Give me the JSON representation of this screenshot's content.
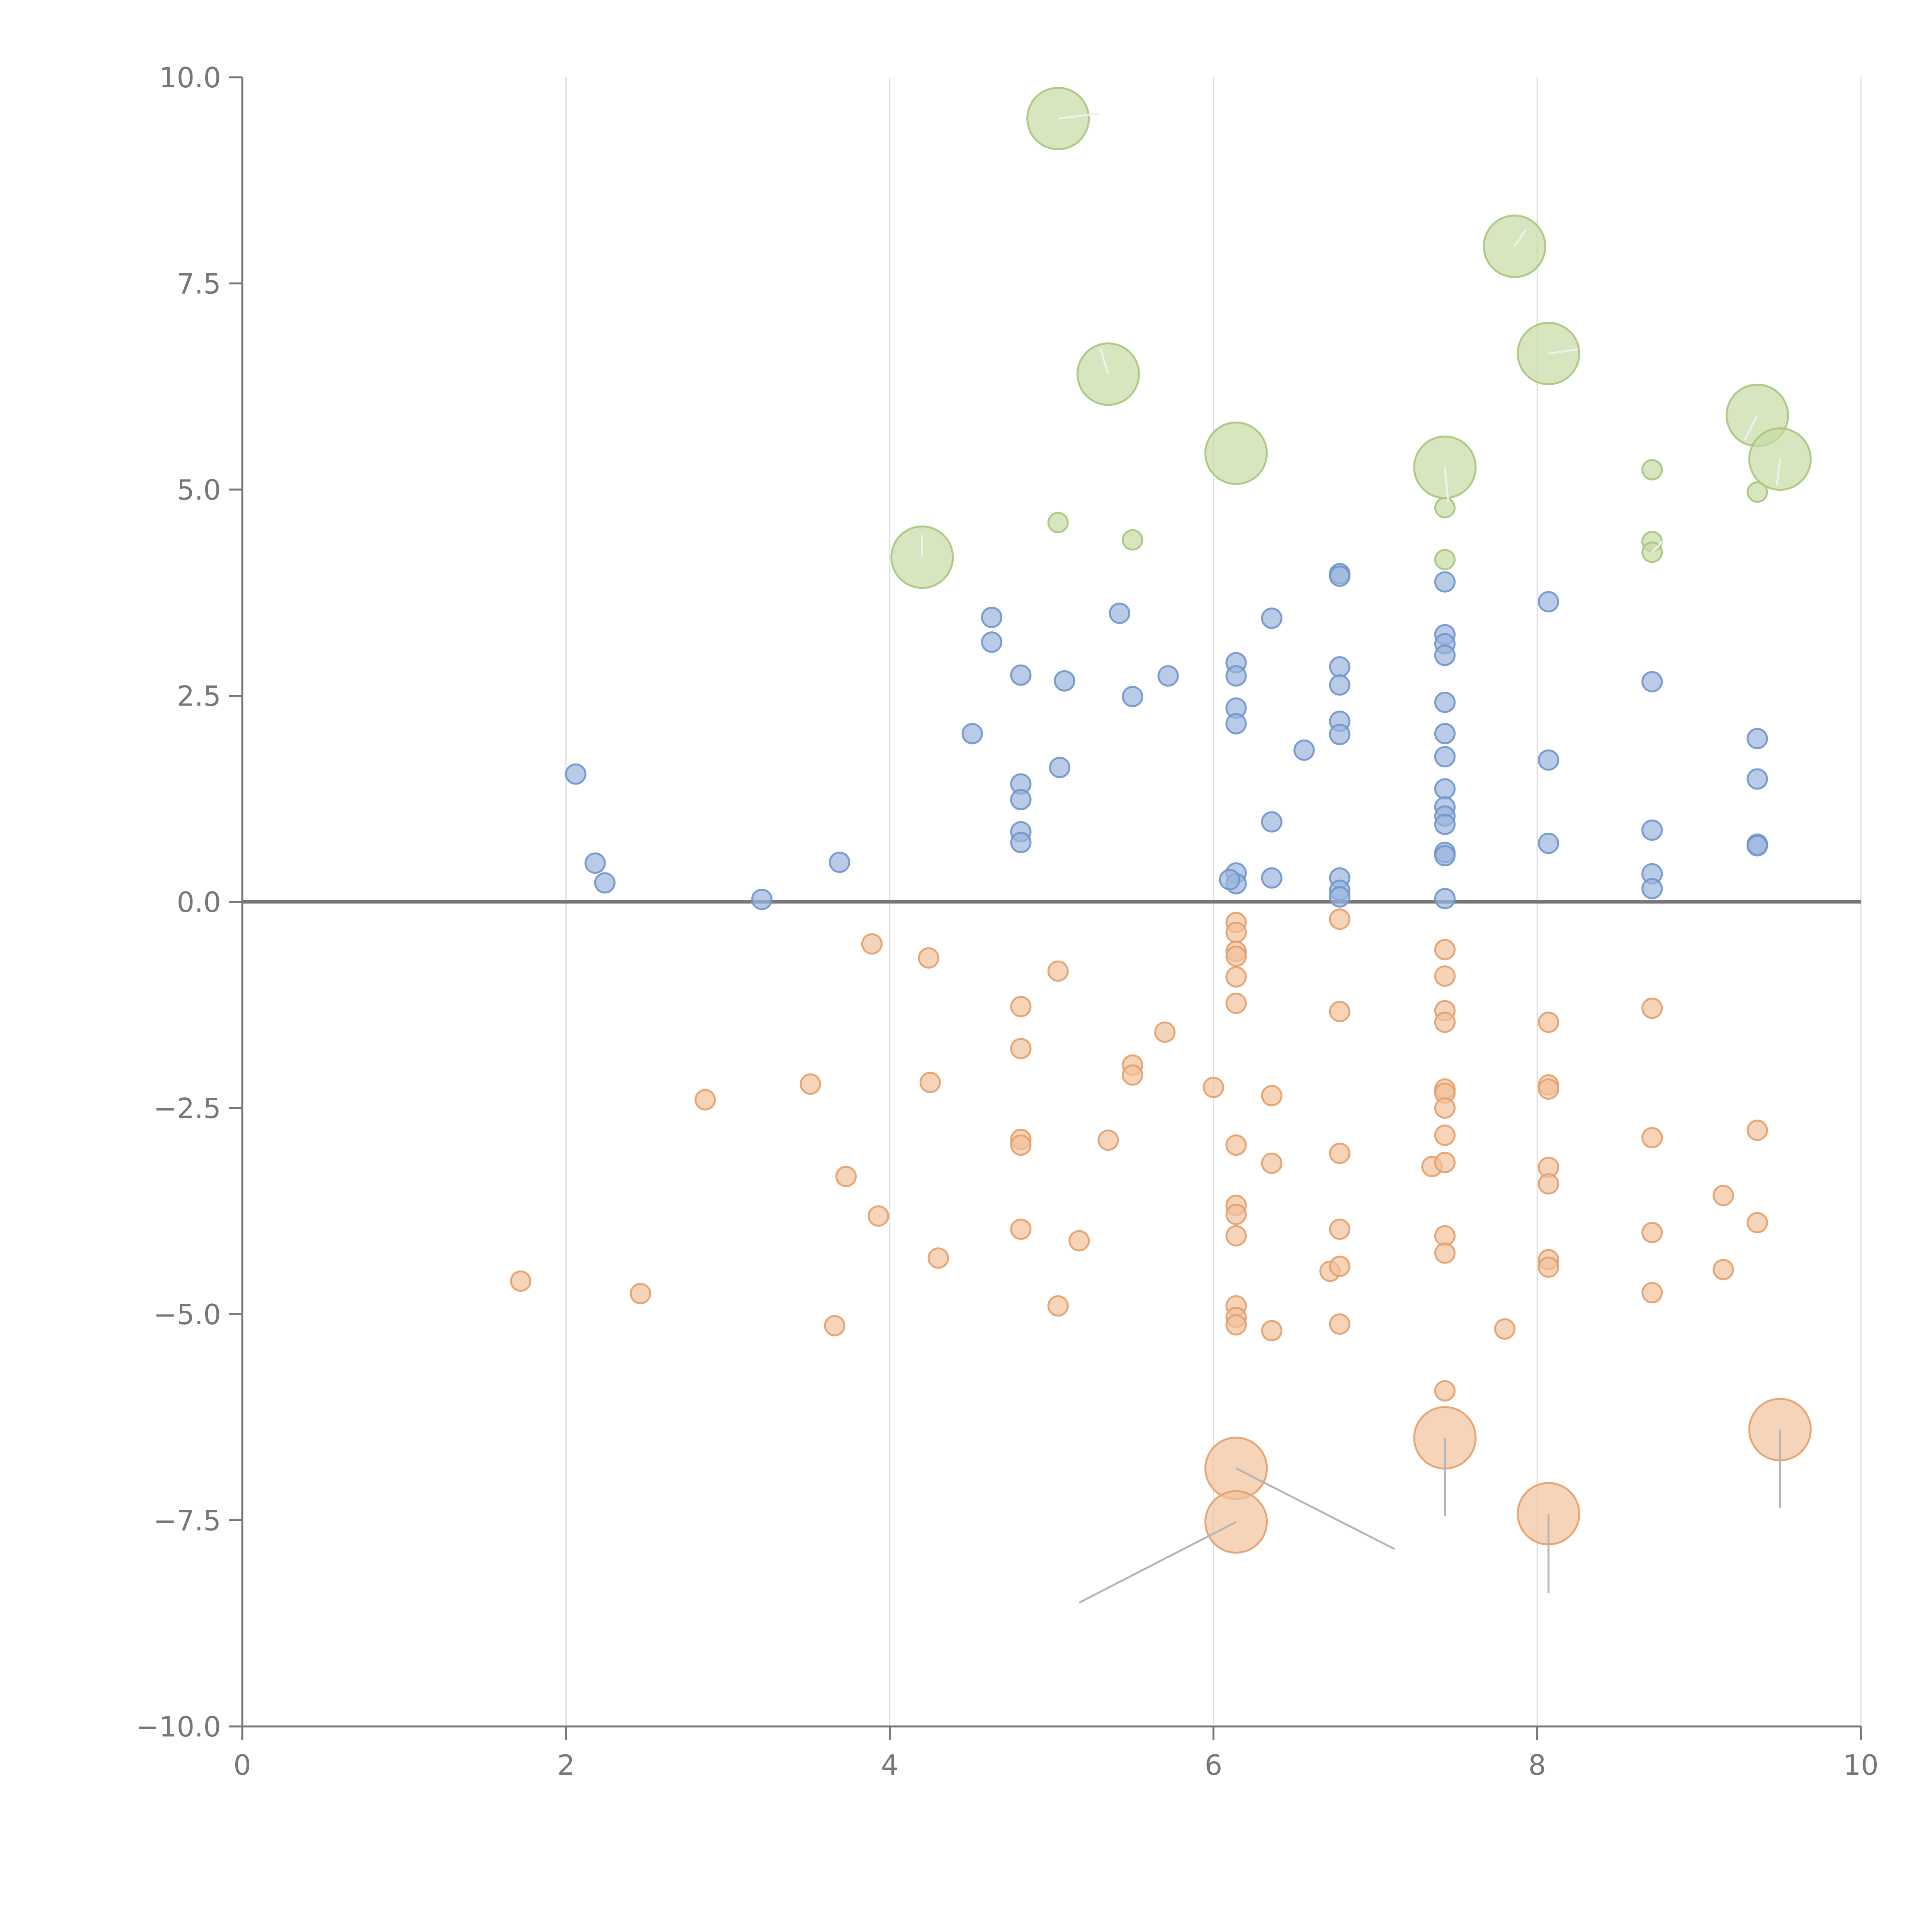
{
  "chart_data": {
    "type": "scatter",
    "title": "",
    "xlabel": "",
    "ylabel": "",
    "xlim": [
      0,
      10
    ],
    "ylim": [
      -10,
      10
    ],
    "x_ticks": [
      "0",
      "2",
      "4",
      "6",
      "8",
      "10"
    ],
    "y_ticks": [
      "10.0",
      "7.5",
      "5.0",
      "2.5",
      "0.0",
      "−2.5",
      "−5.0",
      "−7.5",
      "−10.0"
    ],
    "x_tick_values": [
      0,
      2,
      4,
      6,
      8,
      10
    ],
    "y_tick_values": [
      10,
      7.5,
      5,
      2.5,
      0,
      -2.5,
      -5,
      -7.5,
      -10
    ],
    "grid": "vertical",
    "zero_line": true,
    "colors": {
      "blue_fill": "#9bb5dc",
      "blue_stroke": "#6f95cc",
      "orange_fill": "#f2c29c",
      "orange_stroke": "#e3a06b",
      "green_fill": "#c6dca4",
      "green_stroke": "#a7c77c",
      "leader": "#b5b5b5",
      "leader_light": "#f0f0f0"
    },
    "series": [
      {
        "color_key": "blue",
        "points": [
          {
            "x": 2.06,
            "y": 1.55
          },
          {
            "x": 2.18,
            "y": 0.47
          },
          {
            "x": 2.24,
            "y": 0.23
          },
          {
            "x": 3.21,
            "y": 0.03
          },
          {
            "x": 3.69,
            "y": 0.48
          },
          {
            "x": 4.51,
            "y": 2.04
          },
          {
            "x": 4.63,
            "y": 3.45
          },
          {
            "x": 4.63,
            "y": 3.15
          },
          {
            "x": 4.81,
            "y": 2.75
          },
          {
            "x": 4.81,
            "y": 1.43
          },
          {
            "x": 4.81,
            "y": 1.24
          },
          {
            "x": 4.81,
            "y": 0.85
          },
          {
            "x": 4.81,
            "y": 0.72
          },
          {
            "x": 5.05,
            "y": 1.63
          },
          {
            "x": 5.08,
            "y": 2.68
          },
          {
            "x": 5.42,
            "y": 3.5
          },
          {
            "x": 5.5,
            "y": 2.49
          },
          {
            "x": 5.72,
            "y": 2.74
          },
          {
            "x": 6.14,
            "y": 2.9
          },
          {
            "x": 6.14,
            "y": 2.74
          },
          {
            "x": 6.14,
            "y": 2.35
          },
          {
            "x": 6.14,
            "y": 2.16
          },
          {
            "x": 6.14,
            "y": 0.35
          },
          {
            "x": 6.14,
            "y": 0.22
          },
          {
            "x": 6.1,
            "y": 0.27
          },
          {
            "x": 6.36,
            "y": 3.44
          },
          {
            "x": 6.36,
            "y": 0.97
          },
          {
            "x": 6.36,
            "y": 0.29
          },
          {
            "x": 6.56,
            "y": 1.84
          },
          {
            "x": 6.78,
            "y": 3.98
          },
          {
            "x": 6.78,
            "y": 3.95
          },
          {
            "x": 6.78,
            "y": 2.85
          },
          {
            "x": 6.78,
            "y": 2.63
          },
          {
            "x": 6.78,
            "y": 2.19
          },
          {
            "x": 6.78,
            "y": 2.03
          },
          {
            "x": 6.78,
            "y": 0.29
          },
          {
            "x": 6.78,
            "y": 0.14
          },
          {
            "x": 6.78,
            "y": 0.06
          },
          {
            "x": 7.43,
            "y": 3.88
          },
          {
            "x": 7.43,
            "y": 3.24
          },
          {
            "x": 7.43,
            "y": 3.13
          },
          {
            "x": 7.43,
            "y": 2.99
          },
          {
            "x": 7.43,
            "y": 2.42
          },
          {
            "x": 7.43,
            "y": 2.04
          },
          {
            "x": 7.43,
            "y": 1.76
          },
          {
            "x": 7.43,
            "y": 1.37
          },
          {
            "x": 7.43,
            "y": 1.15
          },
          {
            "x": 7.43,
            "y": 1.04
          },
          {
            "x": 7.43,
            "y": 0.94
          },
          {
            "x": 7.43,
            "y": 0.6
          },
          {
            "x": 7.43,
            "y": 0.56
          },
          {
            "x": 7.43,
            "y": 0.04
          },
          {
            "x": 8.07,
            "y": 3.64
          },
          {
            "x": 8.07,
            "y": 1.72
          },
          {
            "x": 8.07,
            "y": 0.71
          },
          {
            "x": 8.71,
            "y": 2.67
          },
          {
            "x": 8.71,
            "y": 0.87
          },
          {
            "x": 8.71,
            "y": 0.34
          },
          {
            "x": 8.71,
            "y": 0.16
          },
          {
            "x": 9.36,
            "y": 1.98
          },
          {
            "x": 9.36,
            "y": 1.49
          },
          {
            "x": 9.36,
            "y": 0.7
          },
          {
            "x": 9.36,
            "y": 0.68
          }
        ]
      },
      {
        "color_key": "orange",
        "points": [
          {
            "x": 1.72,
            "y": -4.6
          },
          {
            "x": 2.46,
            "y": -4.75
          },
          {
            "x": 2.86,
            "y": -2.4
          },
          {
            "x": 3.51,
            "y": -2.21
          },
          {
            "x": 3.66,
            "y": -5.14
          },
          {
            "x": 3.73,
            "y": -3.33
          },
          {
            "x": 3.89,
            "y": -0.51
          },
          {
            "x": 3.93,
            "y": -3.81
          },
          {
            "x": 4.24,
            "y": -0.68
          },
          {
            "x": 4.25,
            "y": -2.19
          },
          {
            "x": 4.3,
            "y": -4.32
          },
          {
            "x": 4.81,
            "y": -1.27
          },
          {
            "x": 4.81,
            "y": -1.78
          },
          {
            "x": 4.81,
            "y": -2.88
          },
          {
            "x": 4.81,
            "y": -2.95
          },
          {
            "x": 4.81,
            "y": -3.97
          },
          {
            "x": 5.04,
            "y": -0.84
          },
          {
            "x": 5.04,
            "y": -4.9
          },
          {
            "x": 5.17,
            "y": -4.11
          },
          {
            "x": 5.35,
            "y": -2.89
          },
          {
            "x": 5.5,
            "y": -1.98
          },
          {
            "x": 5.5,
            "y": -2.1
          },
          {
            "x": 5.7,
            "y": -1.58
          },
          {
            "x": 6.0,
            "y": -2.25
          },
          {
            "x": 6.14,
            "y": -0.25
          },
          {
            "x": 6.14,
            "y": -0.37
          },
          {
            "x": 6.14,
            "y": -0.6
          },
          {
            "x": 6.14,
            "y": -0.66
          },
          {
            "x": 6.14,
            "y": -0.91
          },
          {
            "x": 6.14,
            "y": -1.23
          },
          {
            "x": 6.14,
            "y": -2.95
          },
          {
            "x": 6.14,
            "y": -3.68
          },
          {
            "x": 6.14,
            "y": -3.79
          },
          {
            "x": 6.14,
            "y": -4.05
          },
          {
            "x": 6.14,
            "y": -4.9
          },
          {
            "x": 6.14,
            "y": -5.04
          },
          {
            "x": 6.14,
            "y": -5.13
          },
          {
            "x": 6.36,
            "y": -2.35
          },
          {
            "x": 6.36,
            "y": -3.17
          },
          {
            "x": 6.36,
            "y": -5.2
          },
          {
            "x": 6.72,
            "y": -4.48
          },
          {
            "x": 6.78,
            "y": -0.21
          },
          {
            "x": 6.78,
            "y": -1.33
          },
          {
            "x": 6.78,
            "y": -3.05
          },
          {
            "x": 6.78,
            "y": -3.97
          },
          {
            "x": 6.78,
            "y": -4.42
          },
          {
            "x": 6.78,
            "y": -5.12
          },
          {
            "x": 7.35,
            "y": -3.21
          },
          {
            "x": 7.43,
            "y": -0.58
          },
          {
            "x": 7.43,
            "y": -0.9
          },
          {
            "x": 7.43,
            "y": -1.32
          },
          {
            "x": 7.43,
            "y": -1.46
          },
          {
            "x": 7.43,
            "y": -2.27
          },
          {
            "x": 7.43,
            "y": -2.32
          },
          {
            "x": 7.43,
            "y": -2.5
          },
          {
            "x": 7.43,
            "y": -2.83
          },
          {
            "x": 7.43,
            "y": -3.16
          },
          {
            "x": 7.43,
            "y": -4.05
          },
          {
            "x": 7.43,
            "y": -4.26
          },
          {
            "x": 7.43,
            "y": -5.93
          },
          {
            "x": 7.8,
            "y": -5.18
          },
          {
            "x": 8.07,
            "y": -1.46
          },
          {
            "x": 8.07,
            "y": -2.22
          },
          {
            "x": 8.07,
            "y": -2.27
          },
          {
            "x": 8.07,
            "y": -3.22
          },
          {
            "x": 8.07,
            "y": -3.42
          },
          {
            "x": 8.07,
            "y": -4.34
          },
          {
            "x": 8.07,
            "y": -4.43
          },
          {
            "x": 8.71,
            "y": -1.29
          },
          {
            "x": 8.71,
            "y": -2.86
          },
          {
            "x": 8.71,
            "y": -4.01
          },
          {
            "x": 8.71,
            "y": -4.74
          },
          {
            "x": 9.15,
            "y": -3.56
          },
          {
            "x": 9.15,
            "y": -4.46
          },
          {
            "x": 9.36,
            "y": -2.77
          },
          {
            "x": 9.36,
            "y": -3.89
          }
        ]
      },
      {
        "color_key": "green",
        "points": [
          {
            "x": 5.04,
            "y": 4.6
          },
          {
            "x": 5.5,
            "y": 4.39
          },
          {
            "x": 7.43,
            "y": 4.78
          },
          {
            "x": 7.43,
            "y": 4.15
          },
          {
            "x": 8.71,
            "y": 5.24
          },
          {
            "x": 8.71,
            "y": 4.37
          },
          {
            "x": 8.71,
            "y": 4.24
          },
          {
            "x": 9.36,
            "y": 4.97
          }
        ]
      }
    ],
    "large_bubbles": [
      {
        "color_key": "green",
        "x": 5.04,
        "y": 9.5,
        "r": 1,
        "label": ""
      },
      {
        "color_key": "green",
        "x": 7.86,
        "y": 7.95,
        "r": 1,
        "label": ""
      },
      {
        "color_key": "green",
        "x": 5.35,
        "y": 6.4,
        "r": 1,
        "label": ""
      },
      {
        "color_key": "green",
        "x": 8.07,
        "y": 6.65,
        "r": 1,
        "label": ""
      },
      {
        "color_key": "green",
        "x": 9.36,
        "y": 5.9,
        "r": 1,
        "label": ""
      },
      {
        "color_key": "green",
        "x": 9.5,
        "y": 5.37,
        "r": 1,
        "label": ""
      },
      {
        "color_key": "green",
        "x": 6.14,
        "y": 5.44,
        "r": 1,
        "label": ""
      },
      {
        "color_key": "green",
        "x": 7.43,
        "y": 5.27,
        "r": 1,
        "label": ""
      },
      {
        "color_key": "green",
        "x": 4.2,
        "y": 4.18,
        "r": 1,
        "label": ""
      },
      {
        "color_key": "orange",
        "x": 6.14,
        "y": -6.87,
        "r": 1,
        "label": ""
      },
      {
        "color_key": "orange",
        "x": 6.14,
        "y": -7.52,
        "r": 1,
        "label": ""
      },
      {
        "color_key": "orange",
        "x": 7.43,
        "y": -6.5,
        "r": 1,
        "label": ""
      },
      {
        "color_key": "orange",
        "x": 8.07,
        "y": -7.42,
        "r": 1,
        "label": ""
      },
      {
        "color_key": "orange",
        "x": 9.5,
        "y": -6.4,
        "r": 1,
        "label": ""
      }
    ],
    "leader_lines": [
      {
        "color_key": "leader",
        "x1": 6.14,
        "y1": -7.52,
        "x2": 5.17,
        "y2": -8.5
      },
      {
        "color_key": "leader",
        "x1": 6.14,
        "y1": -6.87,
        "x2": 7.12,
        "y2": -7.85
      },
      {
        "color_key": "leader",
        "x1": 7.43,
        "y1": -6.5,
        "x2": 7.43,
        "y2": -7.45
      },
      {
        "color_key": "leader",
        "x1": 8.07,
        "y1": -7.42,
        "x2": 8.07,
        "y2": -8.38
      },
      {
        "color_key": "leader",
        "x1": 9.5,
        "y1": -6.4,
        "x2": 9.5,
        "y2": -7.35
      },
      {
        "color_key": "leader_light",
        "x1": 5.04,
        "y1": 9.5,
        "x2": 5.3,
        "y2": 9.56
      },
      {
        "color_key": "leader_light",
        "x1": 7.86,
        "y1": 7.95,
        "x2": 7.93,
        "y2": 8.15
      },
      {
        "color_key": "leader_light",
        "x1": 5.35,
        "y1": 6.4,
        "x2": 5.3,
        "y2": 6.72
      },
      {
        "color_key": "leader_light",
        "x1": 8.07,
        "y1": 6.65,
        "x2": 8.25,
        "y2": 6.7
      },
      {
        "color_key": "leader_light",
        "x1": 9.36,
        "y1": 5.9,
        "x2": 9.28,
        "y2": 5.6
      },
      {
        "color_key": "leader_light",
        "x1": 9.5,
        "y1": 5.37,
        "x2": 9.48,
        "y2": 5.05
      },
      {
        "color_key": "leader_light",
        "x1": 7.43,
        "y1": 5.27,
        "x2": 7.45,
        "y2": 4.85
      },
      {
        "color_key": "leader_light",
        "x1": 4.2,
        "y1": 4.18,
        "x2": 4.2,
        "y2": 4.45
      },
      {
        "color_key": "leader_light",
        "x1": 8.71,
        "y1": 4.24,
        "x2": 8.78,
        "y2": 4.38
      }
    ],
    "bubble_scale": {
      "small_r_per_unit": 0.6,
      "large_r_per_unit": 1.9
    }
  }
}
